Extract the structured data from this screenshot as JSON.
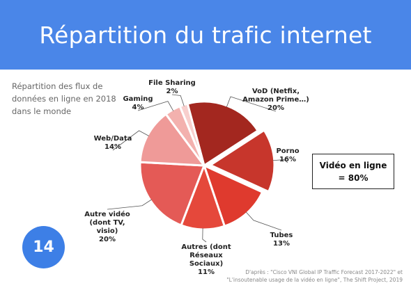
{
  "slide": {
    "title": "Répartition du trafic internet",
    "subtitle": "Répartition des flux de données en ligne en 2018 dans le monde",
    "callout": {
      "line1": "Vidéo en ligne",
      "line2": "= 80%"
    },
    "page_number": "14",
    "source": {
      "line1": "D'après : \"Cisco VNI Global IP Traffic Forecast 2017-2022\" et",
      "line2": "\"L'insoutenable usage de la vidéo en ligne\", The Shift Project, 2019"
    }
  },
  "chart_data": {
    "type": "pie",
    "title": "",
    "start_angle_deg": -15,
    "direction": "clockwise",
    "slices": [
      {
        "label": [
          "VoD (Netfix,",
          "Amazon Prime…)"
        ],
        "value": 20,
        "value_label": "20%",
        "color": "#a3271f",
        "exploded": false
      },
      {
        "label": [
          "Porno"
        ],
        "value": 16,
        "value_label": "16%",
        "color": "#c7362c",
        "exploded": true
      },
      {
        "label": [
          "Tubes"
        ],
        "value": 13,
        "value_label": "13%",
        "color": "#df3a2e",
        "exploded": false
      },
      {
        "label": [
          "Autres (dont",
          "Réseaux",
          "Sociaux)"
        ],
        "value": 11,
        "value_label": "11%",
        "color": "#e5483b",
        "exploded": false
      },
      {
        "label": [
          "Autre vidéo",
          "(dont TV,",
          "visio)"
        ],
        "value": 20,
        "value_label": "20%",
        "color": "#e45a56",
        "exploded": false
      },
      {
        "label": [
          "Web/Data"
        ],
        "value": 14,
        "value_label": "14%",
        "color": "#ef9a98",
        "exploded": false
      },
      {
        "label": [
          "Gaming"
        ],
        "value": 4,
        "value_label": "4%",
        "color": "#f3b1ae",
        "exploded": false
      },
      {
        "label": [
          "File Sharing"
        ],
        "value": 2,
        "value_label": "2%",
        "color": "#f8cfcd",
        "exploded": false
      }
    ]
  }
}
